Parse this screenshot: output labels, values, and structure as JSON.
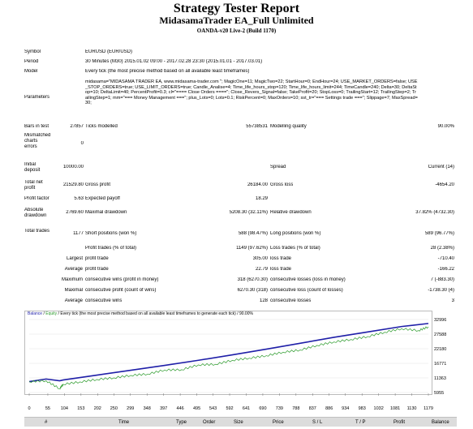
{
  "header": {
    "title": "Strategy Tester Report",
    "subtitle": "MidasamaTrader EA_Full Unlimited",
    "server": "OANDA-v20 Live-2 (Build 1170)"
  },
  "info": {
    "symbol_label": "Symbol",
    "symbol_value": "EURUSD (EUR/USD)",
    "period_label": "Period",
    "period_value": "30 Minutes (M30) 2015.01.02 09:00 - 2017.02.28 23:30 (2015.01.01 - 2017.03.01)",
    "model_label": "Model",
    "model_value": "Every tick (the most precise method based on all available least timeframes)",
    "parameters_label": "Parameters",
    "parameters_value": "midasama=\"MIDASAMA TRADER EA, www.midasama-trader.com \"; MagicOne=11; MagicTwo=22; StartHour=0; EndHour=24; USE_MARKET_ORDERS=false; USE_STOP_ORDERS=true; USE_LIMIT_ORDERS=true; Candle_Analise=4; Time_life_hours_stop=120; Time_life_hours_limit=244; TimeCandle=240; Delta=30; DeltaStop=10; DeltaLimit=40; PercentProfit=0.3; cl=\"==== Close Orders ====\"; Close_Revers_Signal=false; TakeProfit=20; StopLoss=0; TrailingStart=12; TrailingStep=2; TrailingStep=1; mm=\"=== Money Management ===\"; plus_Lots=0; Lots=0.1; RiskPercent=0; MaxOrders=10; sst_tr=\"=== Settings trade ===\"; Slippage=7; MaxSpread=30;",
    "bars_label": "Bars in test",
    "bars_value": "27857",
    "ticks_label": "Ticks modelled",
    "ticks_value": "55738531",
    "quality_label": "Modelling quality",
    "quality_value": "90.00%",
    "mismatched_label": "Mismatched charts errors",
    "mismatched_value": "0",
    "deposit_label": "Initial deposit",
    "deposit_value": "10000.00",
    "spread_label": "Spread",
    "spread_value": "Current (14)"
  },
  "stats": {
    "net_profit_label": "Total net profit",
    "net_profit_value": "21529.80",
    "gross_profit_label": "Gross profit",
    "gross_profit_value": "26184.00",
    "gross_loss_label": "Gross loss",
    "gross_loss_value": "-4654.20",
    "profit_factor_label": "Profit factor",
    "profit_factor_value": "5.63",
    "expected_payoff_label": "Expected payoff",
    "expected_payoff_value": "18.29",
    "abs_dd_label": "Absolute drawdown",
    "abs_dd_value": "2769.60",
    "max_dd_label": "Maximal drawdown",
    "max_dd_value": "5208.30 (32.11%)",
    "rel_dd_label": "Relative drawdown",
    "rel_dd_value": "37.82% (4732.30)",
    "total_trades_label": "Total trades",
    "total_trades_value": "1177",
    "short_label": "Short positions (won %)",
    "short_value": "588 (98.47%)",
    "long_label": "Long positions (won %)",
    "long_value": "589 (96.77%)",
    "profit_trades_label": "Profit trades (% of total)",
    "profit_trades_value": "1149 (97.62%)",
    "loss_trades_label": "Loss trades (% of total)",
    "loss_trades_value": "28 (2.38%)",
    "largest_label": "Largest",
    "largest_profit_label": "profit trade",
    "largest_profit_value": "305.00",
    "largest_loss_label": "loss trade",
    "largest_loss_value": "-710.40",
    "average_label": "Average",
    "average_profit_label": "profit trade",
    "average_profit_value": "22.79",
    "average_loss_label": "loss trade",
    "average_loss_value": "-166.22",
    "maximum_label": "Maximum",
    "max_cons_wins_label": "consecutive wins (profit in money)",
    "max_cons_wins_value": "318 (6270.30)",
    "max_cons_losses_label": "consecutive losses (loss in money)",
    "max_cons_losses_value": "7 (-883.30)",
    "maximal_label": "Maximal",
    "maximal_cons_profit_label": "consecutive profit (count of wins)",
    "maximal_cons_profit_value": "6270.30 (318)",
    "maximal_cons_loss_label": "consecutive loss (count of losses)",
    "maximal_cons_loss_value": "-1738.30 (4)",
    "avg2_label": "Average",
    "avg_cons_wins_label": "consecutive wins",
    "avg_cons_wins_value": "128",
    "avg_cons_losses_label": "consecutive losses",
    "avg_cons_losses_value": "3"
  },
  "chart_header": {
    "balance": "Balance",
    "sep": " / ",
    "equity": "Equity",
    "rest": " / Every tick (the most precise method based on all available least timeframes to generate each tick) / 90.00%"
  },
  "chart_data": {
    "type": "line",
    "xlabel": "",
    "ylabel": "",
    "x_ticks": [
      "0",
      "55",
      "104",
      "153",
      "202",
      "250",
      "299",
      "348",
      "397",
      "446",
      "495",
      "543",
      "592",
      "641",
      "690",
      "739",
      "788",
      "837",
      "886",
      "934",
      "983",
      "1032",
      "1081",
      "1130",
      "1179"
    ],
    "y_ticks": [
      "32996",
      "27588",
      "22180",
      "16771",
      "11363",
      "5955"
    ],
    "ylim": [
      5955,
      32996
    ],
    "xlim": [
      0,
      1179
    ],
    "colors": {
      "balance": "#1f1fa8",
      "equity": "#2a9a2a"
    },
    "series": [
      {
        "name": "Balance",
        "x": [
          0,
          50,
          90,
          100,
          200,
          300,
          400,
          500,
          600,
          700,
          800,
          900,
          1000,
          1100,
          1179
        ],
        "values": [
          10000,
          10950,
          10300,
          10600,
          12400,
          14200,
          16000,
          17900,
          19900,
          22000,
          24200,
          26400,
          28400,
          30400,
          31530
        ]
      },
      {
        "name": "Equity",
        "x": [
          0,
          50,
          90,
          100,
          150,
          200,
          250,
          300,
          350,
          400,
          450,
          500,
          550,
          600,
          650,
          700,
          750,
          800,
          850,
          900,
          950,
          1000,
          1050,
          1100,
          1150,
          1179
        ],
        "values": [
          10000,
          10300,
          7400,
          9000,
          9900,
          10800,
          11400,
          12300,
          12800,
          14300,
          14400,
          16200,
          16400,
          17900,
          18700,
          19600,
          20900,
          21700,
          23400,
          24700,
          25600,
          26700,
          28300,
          29600,
          28900,
          30300
        ]
      }
    ]
  },
  "trades_table": {
    "headers": [
      "#",
      "Time",
      "Type",
      "Order",
      "Size",
      "Price",
      "S / L",
      "T / P",
      "Profit",
      "Balance"
    ]
  }
}
